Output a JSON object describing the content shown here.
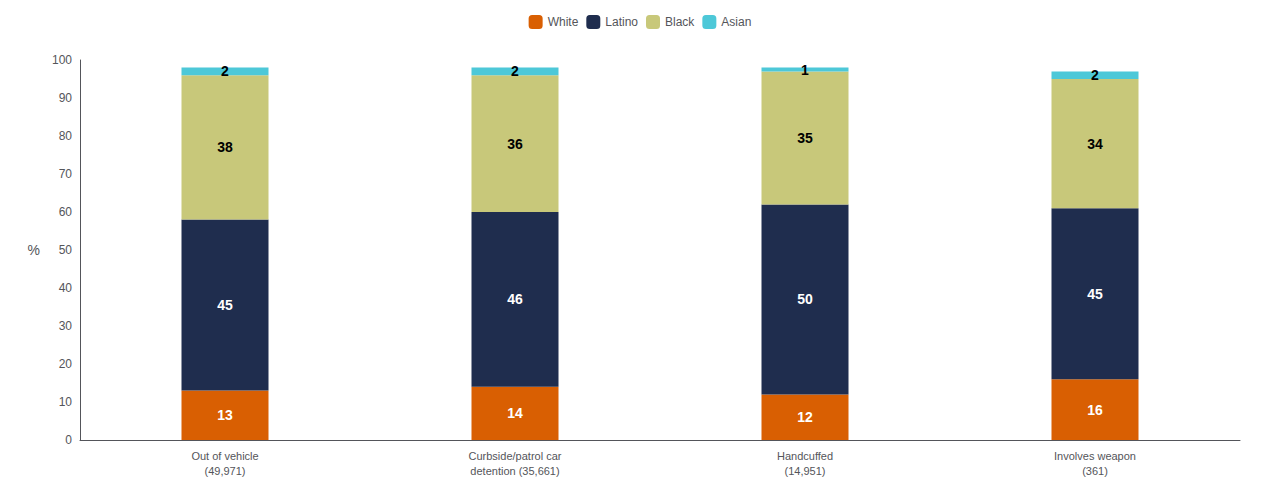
{
  "chart_data": {
    "type": "bar",
    "stacked": true,
    "data_labels": true,
    "grid": false,
    "legend": "top",
    "ylabel": "%",
    "categories": [
      "Out of vehicle\n(49,971)",
      "Curbside/patrol car\ndetention (35,661)",
      "Handcuffed\n(14,951)",
      "Involves weapon\n(361)"
    ],
    "series": [
      {
        "name": "White",
        "color": "#d95f02",
        "values": [
          13,
          14,
          12,
          16
        ]
      },
      {
        "name": "Latino",
        "color": "#1f2d4e",
        "values": [
          45,
          46,
          50,
          45
        ]
      },
      {
        "name": "Black",
        "color": "#c8c87a",
        "values": [
          38,
          36,
          35,
          34
        ]
      },
      {
        "name": "Asian",
        "color": "#4dc8d8",
        "values": [
          2,
          2,
          1,
          2
        ]
      }
    ],
    "ylim": [
      0,
      100
    ],
    "yticks": [
      0,
      10,
      20,
      30,
      40,
      50,
      60,
      70,
      80,
      90,
      100
    ]
  }
}
